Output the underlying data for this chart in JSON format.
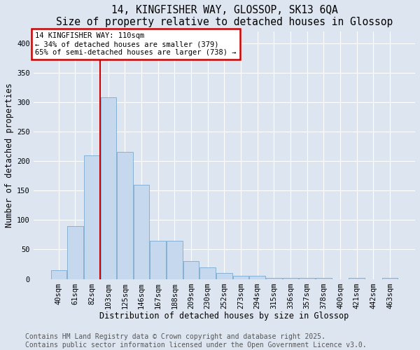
{
  "title1": "14, KINGFISHER WAY, GLOSSOP, SK13 6QA",
  "title2": "Size of property relative to detached houses in Glossop",
  "xlabel": "Distribution of detached houses by size in Glossop",
  "ylabel": "Number of detached properties",
  "categories": [
    "40sqm",
    "61sqm",
    "82sqm",
    "103sqm",
    "125sqm",
    "146sqm",
    "167sqm",
    "188sqm",
    "209sqm",
    "230sqm",
    "252sqm",
    "273sqm",
    "294sqm",
    "315sqm",
    "336sqm",
    "357sqm",
    "378sqm",
    "400sqm",
    "421sqm",
    "442sqm",
    "463sqm"
  ],
  "values": [
    15,
    90,
    210,
    308,
    215,
    160,
    65,
    65,
    30,
    20,
    10,
    5,
    5,
    2,
    2,
    2,
    2,
    0,
    2,
    0,
    2
  ],
  "bar_color": "#c5d8ee",
  "bar_edge_color": "#7aaad0",
  "redline_x": 2.5,
  "redline_label": "14 KINGFISHER WAY: 110sqm",
  "annotation_line2": "← 34% of detached houses are smaller (379)",
  "annotation_line3": "65% of semi-detached houses are larger (738) →",
  "annotation_box_color": "#ffffff",
  "annotation_box_edge": "#cc0000",
  "redline_color": "#cc0000",
  "ylim": [
    0,
    420
  ],
  "yticks": [
    0,
    50,
    100,
    150,
    200,
    250,
    300,
    350,
    400
  ],
  "background_color": "#dde6f0",
  "footer1": "Contains HM Land Registry data © Crown copyright and database right 2025.",
  "footer2": "Contains public sector information licensed under the Open Government Licence v3.0.",
  "title_fontsize": 10.5,
  "axis_label_fontsize": 8.5,
  "tick_fontsize": 7.5,
  "footer_fontsize": 7
}
